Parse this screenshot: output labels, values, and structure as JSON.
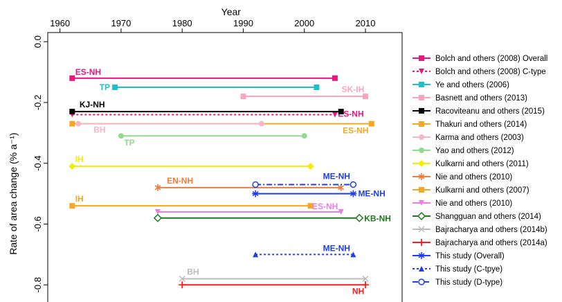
{
  "chart_data": {
    "type": "line",
    "xlabel": "Year",
    "ylabel": "Rate of area change (% a⁻¹)",
    "xlim": [
      1958,
      2016
    ],
    "ylim": [
      -0.87,
      0.03
    ],
    "xticks": [
      1960,
      1970,
      1980,
      1990,
      2000,
      2010
    ],
    "xtick_labels": [
      "1960",
      "1970",
      "1980",
      "1990",
      "2000",
      "2010"
    ],
    "yticks": [
      0,
      -0.2,
      -0.4,
      -0.6,
      -0.8
    ],
    "ytick_labels": [
      "0.0",
      "-0.2",
      "-0.4",
      "-0.6",
      "-0.8"
    ],
    "legend_position": "right",
    "grid": false,
    "series": [
      {
        "name": "Bolch and others (2008) Overall",
        "color": "#e8177e",
        "dash": "solid",
        "marker": "square",
        "x": [
          1962,
          2005
        ],
        "y": [
          -0.12,
          -0.12
        ],
        "label": "ES-NH"
      },
      {
        "name": "Bolch and others (2008) C-type",
        "color": "#e8177e",
        "dash": "dotted",
        "marker": "triangle-down",
        "x": [
          1962,
          2005
        ],
        "y": [
          -0.24,
          -0.24
        ],
        "label": "ES-NH"
      },
      {
        "name": "Ye and others (2006)",
        "color": "#1fbfc9",
        "dash": "solid",
        "marker": "square",
        "x": [
          1969,
          2002
        ],
        "y": [
          -0.15,
          -0.15
        ],
        "label": "TP"
      },
      {
        "name": "Basnett and others (2013)",
        "color": "#f4a6c0",
        "dash": "solid",
        "marker": "square",
        "x": [
          1990,
          2010
        ],
        "y": [
          -0.18,
          -0.18
        ],
        "label": "SK-IH"
      },
      {
        "name": "Racoviteanu and others (2015)",
        "color": "#000000",
        "dash": "solid",
        "marker": "square",
        "x": [
          1962,
          2006
        ],
        "y": [
          -0.23,
          -0.23
        ],
        "label": "KJ-NH"
      },
      {
        "name": "Thakuri and others (2014)",
        "color": "#f5a623",
        "dash": "solid",
        "marker": "square",
        "x": [
          1962,
          2011
        ],
        "y": [
          -0.27,
          -0.27
        ],
        "label": "ES-NH"
      },
      {
        "name": "Karma and others (2003)",
        "color": "#f4b6c8",
        "dash": "solid",
        "marker": "circle",
        "x": [
          1963,
          1993
        ],
        "y": [
          -0.27,
          -0.27
        ],
        "label": "BH"
      },
      {
        "name": "Yao and others (2012)",
        "color": "#8fdc8f",
        "dash": "solid",
        "marker": "circle",
        "x": [
          1970,
          2000
        ],
        "y": [
          -0.31,
          -0.31
        ],
        "label": "TP"
      },
      {
        "name": "Kulkarni and others (2011)",
        "color": "#f2ee00",
        "dash": "solid",
        "marker": "diamond",
        "x": [
          1962,
          2001
        ],
        "y": [
          -0.41,
          -0.41
        ],
        "label": "IH"
      },
      {
        "name": "Nie and others (2010)",
        "color": "#f07b3b",
        "dash": "solid",
        "marker": "star",
        "x": [
          1976,
          2006
        ],
        "y": [
          -0.48,
          -0.48
        ],
        "label": "EN-NH"
      },
      {
        "name": "Kulkarni and others (2007)",
        "color": "#f5a623",
        "dash": "solid",
        "marker": "square",
        "x": [
          1962,
          2001
        ],
        "y": [
          -0.54,
          -0.54
        ],
        "label": "IH"
      },
      {
        "name": "Nie and others (2010)",
        "color": "#e97ee6",
        "dash": "solid",
        "marker": "triangle-down",
        "x": [
          1976,
          2006
        ],
        "y": [
          -0.56,
          -0.56
        ],
        "label": "ES-NH"
      },
      {
        "name": "Shangguan and others (2014)",
        "color": "#1a7a1a",
        "dash": "solid",
        "marker": "diamond-open",
        "x": [
          1976,
          2009
        ],
        "y": [
          -0.58,
          -0.58
        ],
        "label": "KB-NH"
      },
      {
        "name": "Bajracharya and others (2014b)",
        "color": "#bbbbbb",
        "dash": "solid",
        "marker": "x",
        "x": [
          1980,
          2010
        ],
        "y": [
          -0.78,
          -0.78
        ],
        "label": "BH"
      },
      {
        "name": "Bajracharya and others (2014a)",
        "color": "#ff1a1a",
        "dash": "solid",
        "marker": "plus",
        "x": [
          1980,
          2010
        ],
        "y": [
          -0.8,
          -0.8
        ],
        "label": "NH"
      },
      {
        "name": "This study (Overall)",
        "color": "#1f3df0",
        "dash": "solid",
        "marker": "asterisk",
        "x": [
          1992,
          2008
        ],
        "y": [
          -0.5,
          -0.5
        ],
        "label": "ME-NH"
      },
      {
        "name": "This study (C-tpye)",
        "color": "#1f3df0",
        "dash": "dotted",
        "marker": "triangle-up",
        "x": [
          1992,
          2008
        ],
        "y": [
          -0.7,
          -0.7
        ],
        "label": "ME-NH"
      },
      {
        "name": "This study (D-type)",
        "color": "#1f3df0",
        "dash": "dashdot",
        "marker": "circle-open",
        "x": [
          1992,
          2008
        ],
        "y": [
          -0.47,
          -0.47
        ],
        "label": "ME-NH"
      }
    ]
  }
}
